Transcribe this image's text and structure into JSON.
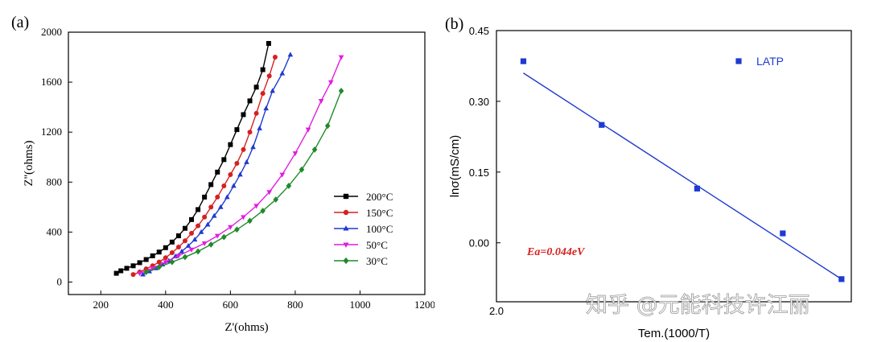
{
  "chart_data": [
    {
      "panel_label": "(a)",
      "type": "line",
      "xlabel": "Z'(ohms)",
      "ylabel": "Z''(ohms)",
      "xlim": [
        100,
        1200
      ],
      "ylim": [
        -100,
        2000
      ],
      "xticks": [
        200,
        400,
        600,
        800,
        1000,
        1200
      ],
      "yticks": [
        0,
        400,
        800,
        1200,
        1600,
        2000
      ],
      "grid": false,
      "legend_position": "lower-right",
      "series": [
        {
          "name": "200°C",
          "color": "#000000",
          "marker": "square",
          "x": [
            248,
            262,
            280,
            300,
            320,
            340,
            360,
            380,
            400,
            420,
            440,
            460,
            480,
            500,
            520,
            540,
            560,
            580,
            600,
            620,
            640,
            660,
            680,
            700,
            718
          ],
          "y": [
            70,
            90,
            110,
            130,
            155,
            180,
            210,
            240,
            275,
            320,
            370,
            430,
            500,
            580,
            680,
            780,
            880,
            980,
            1100,
            1220,
            1340,
            1450,
            1560,
            1700,
            1910
          ]
        },
        {
          "name": "150°C",
          "color": "#d62020",
          "marker": "circle",
          "x": [
            300,
            320,
            340,
            360,
            380,
            400,
            420,
            440,
            460,
            480,
            500,
            520,
            540,
            560,
            580,
            600,
            620,
            640,
            660,
            680,
            700,
            720,
            738
          ],
          "y": [
            60,
            80,
            105,
            130,
            160,
            195,
            235,
            280,
            330,
            390,
            450,
            520,
            600,
            680,
            770,
            860,
            950,
            1060,
            1200,
            1350,
            1510,
            1650,
            1800
          ]
        },
        {
          "name": "100°C",
          "color": "#1f3ad0",
          "marker": "triangle",
          "x": [
            330,
            350,
            370,
            390,
            410,
            430,
            450,
            470,
            490,
            510,
            530,
            550,
            570,
            590,
            610,
            630,
            650,
            670,
            690,
            710,
            730,
            760,
            785
          ],
          "y": [
            60,
            85,
            110,
            140,
            170,
            205,
            245,
            290,
            340,
            400,
            460,
            530,
            600,
            680,
            770,
            860,
            960,
            1080,
            1230,
            1390,
            1530,
            1670,
            1820
          ]
        },
        {
          "name": "50°C",
          "color": "#e21ce0",
          "marker": "triangle-down",
          "x": [
            320,
            360,
            400,
            440,
            480,
            520,
            560,
            600,
            640,
            680,
            720,
            760,
            800,
            840,
            880,
            910,
            942
          ],
          "y": [
            70,
            110,
            160,
            210,
            260,
            310,
            370,
            440,
            520,
            610,
            720,
            860,
            1030,
            1220,
            1450,
            1600,
            1800
          ]
        },
        {
          "name": "30°C",
          "color": "#1f8a2a",
          "marker": "diamond",
          "x": [
            340,
            380,
            420,
            460,
            500,
            540,
            580,
            620,
            660,
            700,
            740,
            780,
            820,
            860,
            900,
            942
          ],
          "y": [
            80,
            120,
            160,
            200,
            245,
            300,
            360,
            420,
            490,
            570,
            660,
            770,
            900,
            1060,
            1250,
            1530
          ]
        }
      ]
    },
    {
      "panel_label": "(b)",
      "type": "scatter",
      "xlabel": "Tem.(1000/T)",
      "ylabel": "lnσ(mS/cm)",
      "xlim": [
        2.0,
        3.45
      ],
      "ylim": [
        -0.125,
        0.45
      ],
      "xticks_visible": [
        2.0
      ],
      "xtick_labels": [
        "2.0"
      ],
      "yticks": [
        0.0,
        0.15,
        0.3,
        0.45
      ],
      "ytick_labels": [
        "0.00",
        "0.15",
        "0.30",
        "0.45"
      ],
      "grid": false,
      "legend_position": "top-right",
      "series": [
        {
          "name": "LATP",
          "color": "#1f3ad0",
          "marker": "square",
          "x": [
            2.11,
            2.43,
            2.82,
            3.17,
            3.41
          ],
          "y": [
            0.385,
            0.25,
            0.115,
            0.02,
            -0.077
          ]
        }
      ],
      "fit_line": {
        "color": "#1f3ad0",
        "x": [
          2.11,
          3.41
        ],
        "y": [
          0.36,
          -0.077
        ]
      },
      "annotation": "Ea=0.044eV",
      "annotation_color": "#d62020"
    }
  ],
  "watermark": "知乎 @元能科技许江丽"
}
